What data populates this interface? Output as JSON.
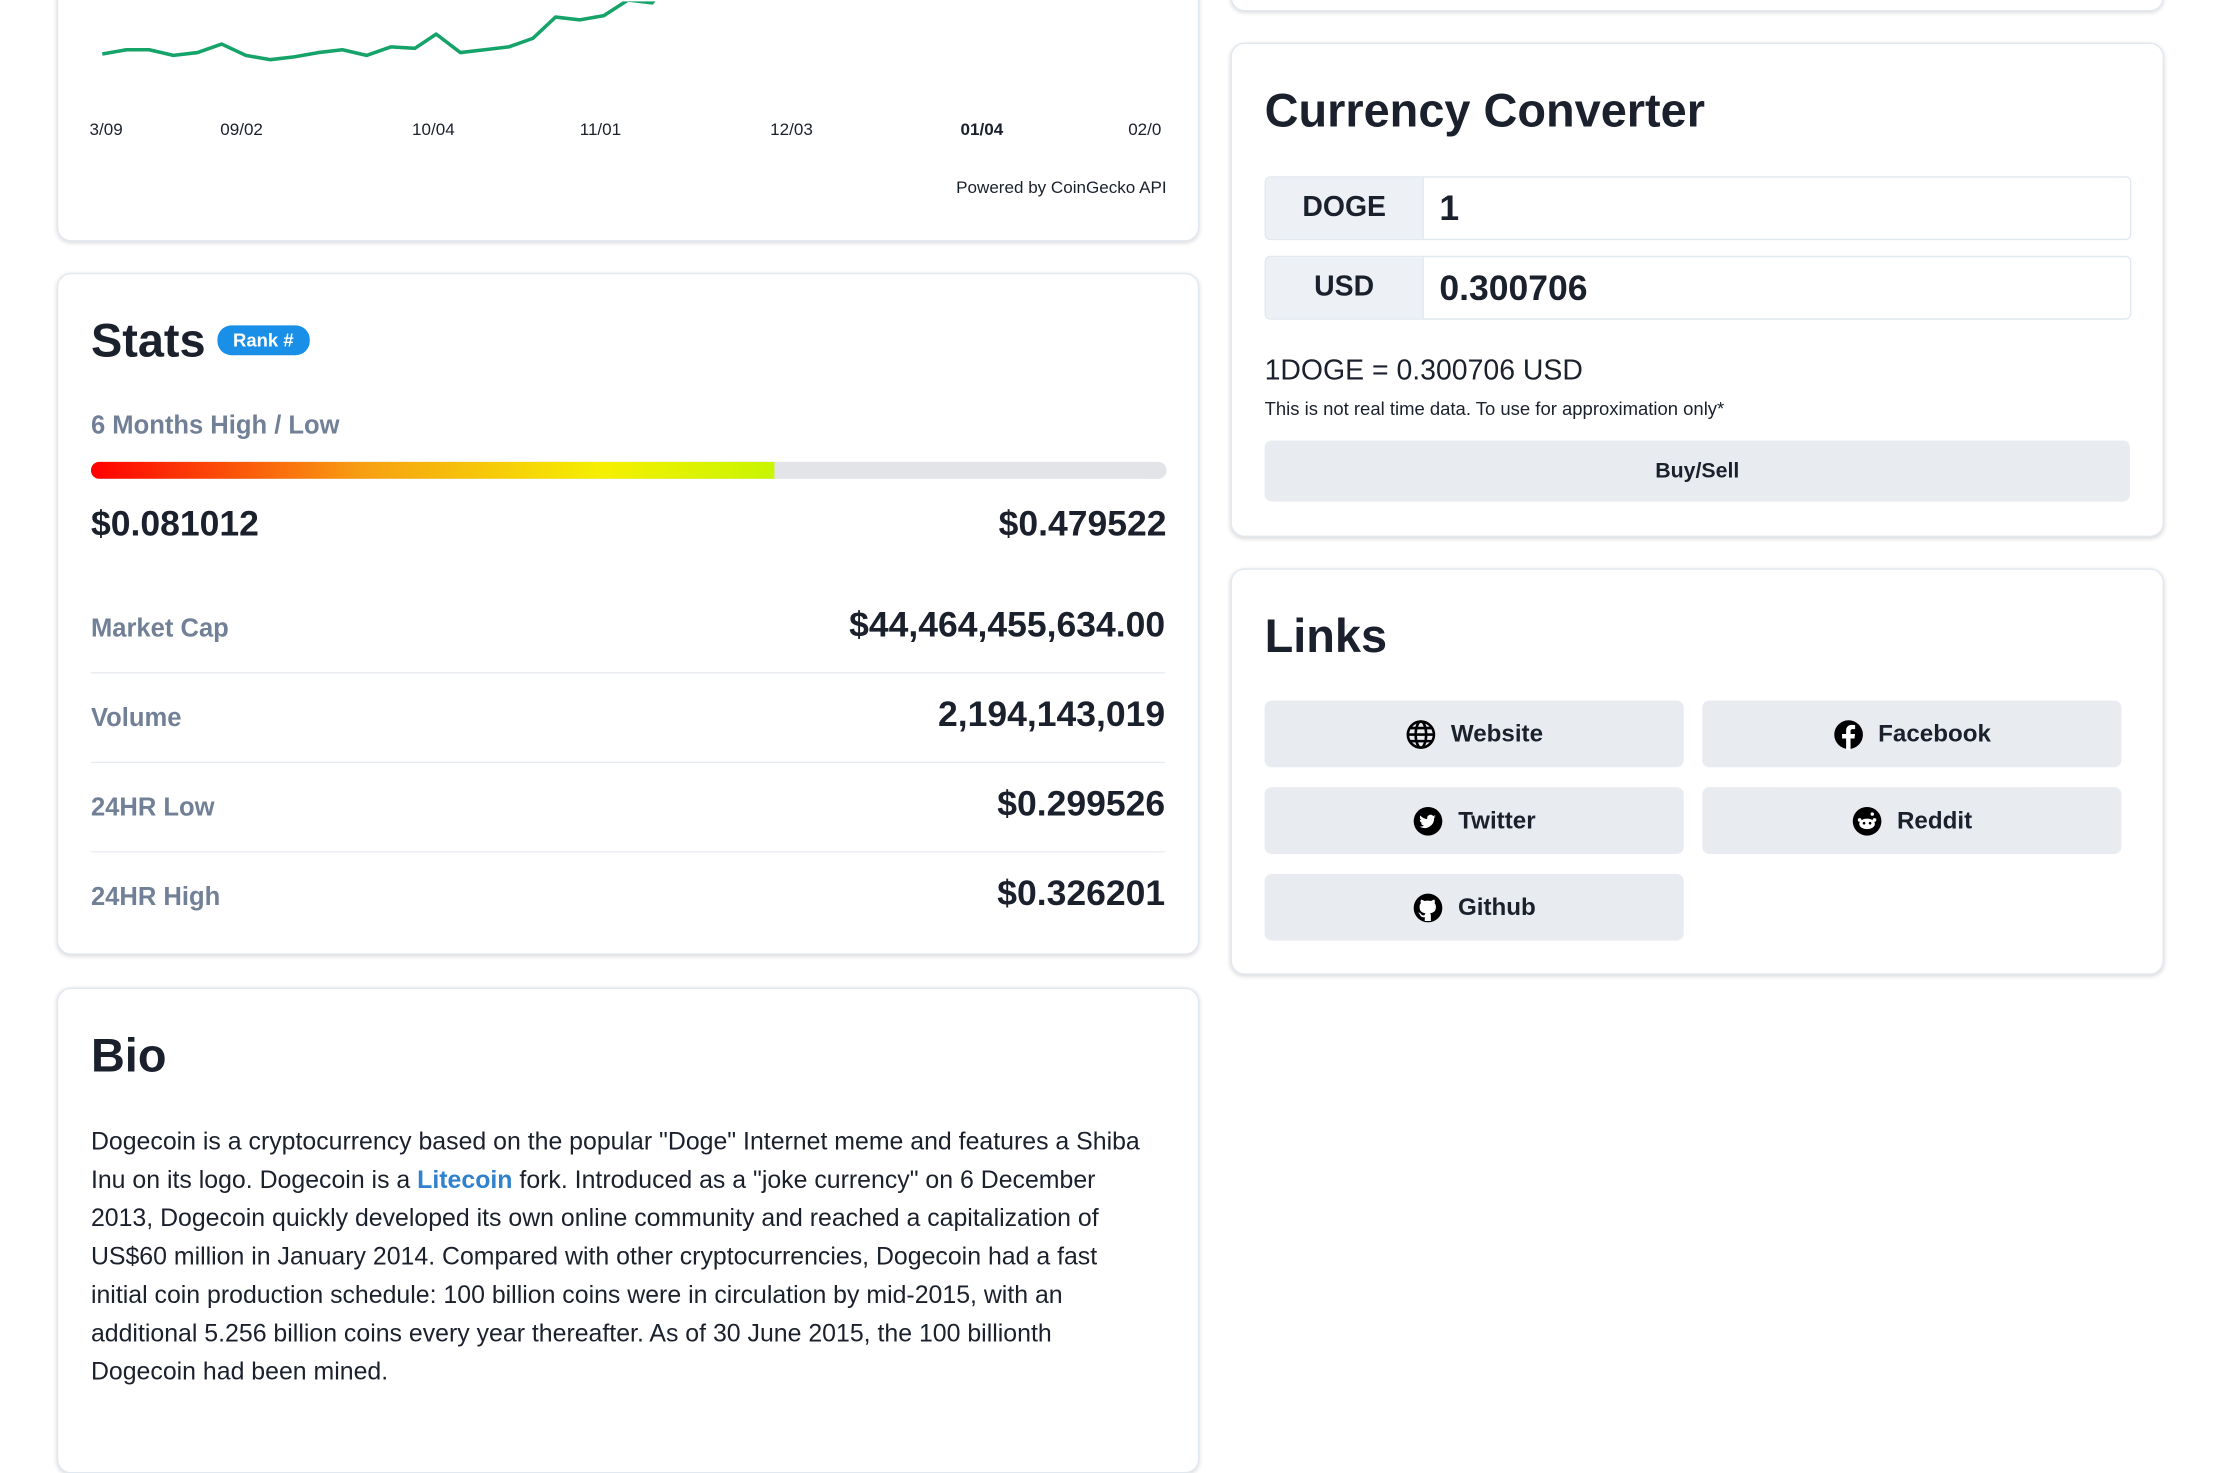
{
  "price_chart": {
    "x_labels": [
      "3/09",
      "09/02",
      "10/04",
      "11/01",
      "12/03",
      "01/04",
      "02/0"
    ],
    "footer": "Powered by CoinGecko API"
  },
  "stats": {
    "title": "Stats",
    "badge": "Rank #",
    "range_label": "6 Months High / Low",
    "low": "$0.081012",
    "high": "$0.479522",
    "rows": [
      {
        "label": "Market Cap",
        "value": "$44,464,455,634.00"
      },
      {
        "label": "Volume",
        "value": "2,194,143,019"
      },
      {
        "label": "24HR Low",
        "value": "$0.299526"
      },
      {
        "label": "24HR High",
        "value": "$0.326201"
      }
    ]
  },
  "bio": {
    "title": "Bio",
    "text_before": "Dogecoin is a cryptocurrency based on the popular \"Doge\" Internet meme and features a Shiba Inu on its logo. Dogecoin is a ",
    "link": "Litecoin",
    "text_after": " fork. Introduced as a \"joke currency\" on 6 December 2013, Dogecoin quickly developed its own online community and reached a capitalization of US$60 million in January 2014. Compared with other cryptocurrencies, Dogecoin had a fast initial coin production schedule: 100 billion coins were in circulation by mid-2015, with an additional 5.256 billion coins every year thereafter. As of 30 June 2015, the 100 billionth Dogecoin had been mined."
  },
  "converter": {
    "title": "Currency Converter",
    "from_code": "DOGE",
    "from_amount": "1",
    "to_code": "USD",
    "to_amount": "0.300706",
    "rate": "1DOGE = 0.300706 USD",
    "note": "This is not real time data. To use for approximation only*",
    "button": "Buy/Sell"
  },
  "links": {
    "title": "Links",
    "items": [
      "Website",
      "Facebook",
      "Twitter",
      "Reddit",
      "Github"
    ]
  }
}
